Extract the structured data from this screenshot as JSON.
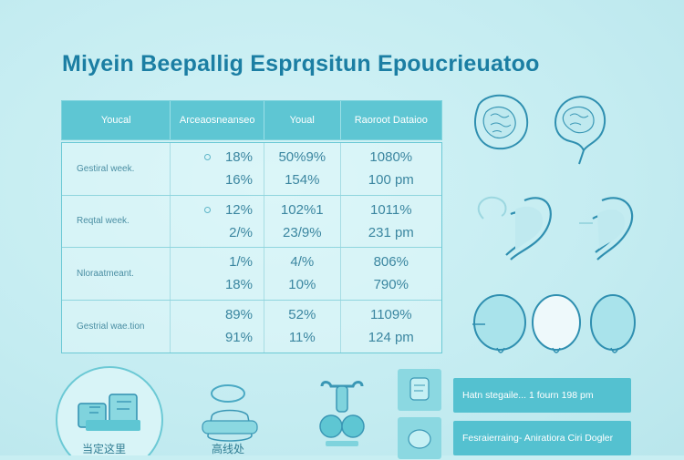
{
  "title": "Miyein Beepallig Esprqsitun Epoucrieuatoo",
  "table": {
    "headers": [
      "Youcal",
      "Arceaosneanseo",
      "Youal",
      "Raoroot Dataioo"
    ],
    "rows": [
      {
        "label": "Gestiral week.",
        "col1": [
          "18%",
          "16%"
        ],
        "col2": [
          "50%9%",
          "154%"
        ],
        "col3": [
          "1080%",
          "100 pm"
        ],
        "bullet": true
      },
      {
        "label": "Reqtal week.",
        "col1": [
          "12%",
          "2/%"
        ],
        "col2": [
          "102%1",
          "23/9%"
        ],
        "col3": [
          "1011%",
          "231 pm"
        ],
        "bullet": true
      },
      {
        "label": "Nloraatmeant.",
        "col1": [
          "1/%",
          "18%"
        ],
        "col2": [
          "4/%",
          "10%"
        ],
        "col3": [
          "806%",
          "790%"
        ],
        "bullet": false
      },
      {
        "label": "Gestrial wae.tion",
        "col1": [
          "89%",
          "91%"
        ],
        "col2": [
          "52%",
          "11%"
        ],
        "col3": [
          "1109%",
          "124 pm"
        ],
        "bullet": false
      }
    ]
  },
  "cards": {
    "card1": "Hatn stegaile... 1 fourn 198 pm",
    "card2": "Fesraierraing- Aniratiora Ciri Dogler"
  },
  "bottom_labels": {
    "left": "当定这里",
    "mid": "高线处"
  },
  "colors": {
    "background": "#c8eef2",
    "accent": "#54c1d0",
    "title": "#1b7ea3"
  },
  "icons": [
    "brain-outline-icon",
    "stomach-icon",
    "round-organ-icon",
    "clipboard-icon",
    "pill-icon",
    "medicine-cup-icon",
    "uterus-icon"
  ]
}
